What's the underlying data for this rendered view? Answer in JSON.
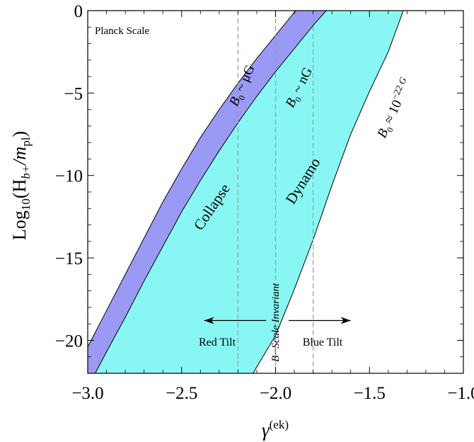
{
  "chart_data": {
    "type": "area",
    "xlim": [
      -3.0,
      -1.0
    ],
    "ylim": [
      -22,
      0
    ],
    "x_ticks": [
      -3.0,
      -2.5,
      -2.0,
      -1.5,
      -1.0
    ],
    "x_tick_labels": [
      "−3.0",
      "−2.5",
      "−2.0",
      "−1.5",
      "−1.0"
    ],
    "y_ticks": [
      0,
      -5,
      -10,
      -15,
      -20
    ],
    "y_tick_labels": [
      "0",
      "−5",
      "−10",
      "−15",
      "−20"
    ],
    "xlabel": {
      "base": "γ",
      "sup": "(ek)"
    },
    "ylabel": {
      "prefix": "Log",
      "sub1": "10",
      "mid": "(H",
      "sub2": "b+",
      "slash": "/m",
      "sub3": "pl",
      "close": ")"
    },
    "grid": false,
    "boundary_curves": [
      {
        "name": "B0 ~ μG",
        "points": [
          [
            -3.0,
            -20.4
          ],
          [
            -2.9,
            -18.2
          ],
          [
            -2.8,
            -16.0
          ],
          [
            -2.7,
            -13.8
          ],
          [
            -2.6,
            -11.6
          ],
          [
            -2.5,
            -9.6
          ],
          [
            -2.4,
            -7.7
          ],
          [
            -2.3,
            -6.0
          ],
          [
            -2.2,
            -4.4
          ],
          [
            -2.1,
            -2.9
          ],
          [
            -2.0,
            -1.5
          ],
          [
            -1.9,
            -0.1
          ],
          [
            -1.89,
            0
          ]
        ]
      },
      {
        "name": "B0 ~ nG",
        "points": [
          [
            -2.96,
            -22
          ],
          [
            -2.9,
            -20.7
          ],
          [
            -2.8,
            -18.6
          ],
          [
            -2.7,
            -16.4
          ],
          [
            -2.6,
            -14.3
          ],
          [
            -2.5,
            -12.2
          ],
          [
            -2.4,
            -10.3
          ],
          [
            -2.3,
            -8.5
          ],
          [
            -2.2,
            -6.8
          ],
          [
            -2.1,
            -5.2
          ],
          [
            -2.0,
            -3.7
          ],
          [
            -1.9,
            -2.3
          ],
          [
            -1.8,
            -0.9
          ],
          [
            -1.73,
            0
          ]
        ]
      },
      {
        "name": "B0 ≈ 10^-22 G",
        "points": [
          [
            -2.12,
            -22
          ],
          [
            -2.0,
            -19.7
          ],
          [
            -1.9,
            -16.9
          ],
          [
            -1.8,
            -13.9
          ],
          [
            -1.7,
            -10.6
          ],
          [
            -1.6,
            -7.5
          ],
          [
            -1.5,
            -4.9
          ],
          [
            -1.4,
            -2.5
          ],
          [
            -1.32,
            0
          ]
        ]
      }
    ],
    "regions": [
      {
        "name": "Collapse",
        "between": [
          "B0 ~ μG",
          "B0 ~ nG"
        ],
        "color": "#9a9af5"
      },
      {
        "name": "Dynamo",
        "between": [
          "B0 ~ nG",
          "B0 ≈ 10^-22 G"
        ],
        "color": "#88f7f3"
      }
    ],
    "vertical_lines": [
      {
        "x": -2.2,
        "style": "dashed"
      },
      {
        "x": -2.0,
        "style": "dashed"
      },
      {
        "x": -1.8,
        "style": "dashed"
      }
    ],
    "arrows": [
      {
        "from": [
          -2.05,
          -18.8
        ],
        "to": [
          -2.38,
          -18.8
        ]
      },
      {
        "from": [
          -1.93,
          -18.8
        ],
        "to": [
          -1.6,
          -18.8
        ]
      }
    ]
  },
  "annotations": {
    "planck": "Planck Scale",
    "collapse": "Collapse",
    "dynamo": "Dynamo",
    "red_tilt": "Red Tilt",
    "blue_tilt": "Blue Tilt",
    "scale_invariant": "B−Scale Invariant",
    "b0_muG": {
      "B": "B",
      "sub": "0",
      "rest": " ~ μG"
    },
    "b0_nG": {
      "B": "B",
      "sub": "0",
      "rest": " ~ nG"
    },
    "b0_1022": {
      "B": "B",
      "sub": "0",
      "rest": " ≈ 10",
      "sup": "−22",
      "unit": " G"
    }
  },
  "colors": {
    "collapse": "#9a9af5",
    "dynamo": "#88f7f3",
    "line": "#000000",
    "dash": "#9b9b9b"
  }
}
